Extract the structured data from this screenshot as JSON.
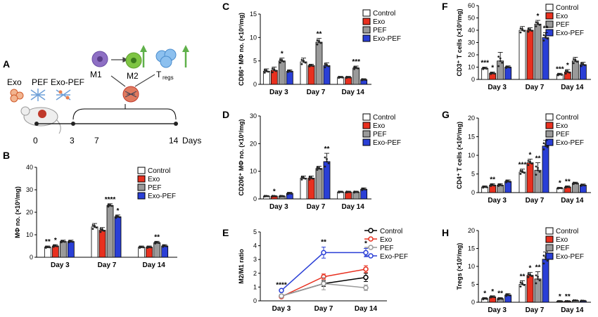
{
  "colors": {
    "control": "#ffffff",
    "exo": "#e8301f",
    "pef": "#9a9a9a",
    "exo_pef": "#2a3fd6",
    "m1": "#8e6fc4",
    "m2": "#7ec443",
    "treg": "#6aa7e0",
    "arrow": "#5fb04a"
  },
  "panel_a": {
    "label": "A",
    "groups": [
      "Exo",
      "PEF",
      "Exo-PEF"
    ],
    "cells": [
      "M1",
      "M2",
      "T",
      "regs"
    ],
    "timeline": [
      "0",
      "3",
      "7",
      "14"
    ],
    "unit": "Days"
  },
  "legend4": [
    "Control",
    "Exo",
    "PEF",
    "Exo-PEF"
  ],
  "chart_data": [
    {
      "id": "B",
      "type": "bar",
      "label": "B",
      "ylabel": "MΦ no. (×10²/mg)",
      "ylim": [
        0,
        40
      ],
      "yticks": [
        "0",
        "10",
        "20",
        "30",
        "40"
      ],
      "categories": [
        "Day 3",
        "Day 7",
        "Day 14"
      ],
      "series": [
        {
          "name": "Control",
          "values": [
            4.5,
            13.5,
            4.5
          ]
        },
        {
          "name": "Exo",
          "values": [
            5,
            12,
            4.5
          ]
        },
        {
          "name": "PEF",
          "values": [
            7,
            23,
            6.5
          ]
        },
        {
          "name": "Exo-PEF",
          "values": [
            7,
            18,
            5
          ]
        }
      ],
      "errors": [
        [
          0.5,
          1.5,
          0.5
        ],
        [
          0.6,
          1.2,
          0.5
        ],
        [
          0.6,
          0.8,
          0.6
        ],
        [
          0.6,
          0.8,
          0.6
        ]
      ],
      "annotations": [
        {
          "text": "**",
          "cat": 0,
          "bar": 0
        },
        {
          "text": "*",
          "cat": 0,
          "bar": 1
        },
        {
          "text": "****",
          "cat": 1,
          "bar": 2
        },
        {
          "text": "*",
          "cat": 1,
          "bar": 3
        },
        {
          "text": "**",
          "cat": 2,
          "bar": 2
        }
      ]
    },
    {
      "id": "C",
      "type": "bar",
      "label": "C",
      "ylabel": "CD86⁺ MΦ no. (×10²/mg)",
      "ylim": [
        0,
        15
      ],
      "yticks": [
        "0",
        "5",
        "10",
        "15"
      ],
      "categories": [
        "Day 3",
        "Day 7",
        "Day 14"
      ],
      "series": [
        {
          "name": "Control",
          "values": [
            2.8,
            4.8,
            1.5
          ]
        },
        {
          "name": "Exo",
          "values": [
            3,
            4,
            1.5
          ]
        },
        {
          "name": "PEF",
          "values": [
            5,
            9,
            3.5
          ]
        },
        {
          "name": "Exo-PEF",
          "values": [
            2.8,
            4,
            1
          ]
        }
      ],
      "errors": [
        [
          0.5,
          0.8,
          0.2
        ],
        [
          0.7,
          0.3,
          0.2
        ],
        [
          0.6,
          0.8,
          0.4
        ],
        [
          0.3,
          0.6,
          0.2
        ]
      ],
      "annotations": [
        {
          "text": "*",
          "cat": 0,
          "bar": 2
        },
        {
          "text": "**",
          "cat": 1,
          "bar": 2
        },
        {
          "text": "***",
          "cat": 2,
          "bar": 2
        }
      ]
    },
    {
      "id": "D",
      "type": "bar",
      "label": "D",
      "ylabel": "CD206⁺ MΦ no. (×10²/mg)",
      "ylim": [
        0,
        30
      ],
      "yticks": [
        "0",
        "10",
        "20",
        "30"
      ],
      "categories": [
        "Day 3",
        "Day 7",
        "Day 14"
      ],
      "series": [
        {
          "name": "Control",
          "values": [
            1,
            7.5,
            2.5
          ]
        },
        {
          "name": "Exo",
          "values": [
            1,
            7.5,
            2.5
          ]
        },
        {
          "name": "PEF",
          "values": [
            1,
            11,
            2.5
          ]
        },
        {
          "name": "Exo-PEF",
          "values": [
            2,
            13.5,
            3.5
          ]
        }
      ],
      "errors": [
        [
          0.2,
          0.8,
          0.3
        ],
        [
          0.2,
          0.8,
          0.3
        ],
        [
          0.2,
          0.8,
          0.3
        ],
        [
          0.4,
          3,
          0.5
        ]
      ],
      "annotations": [
        {
          "text": "*",
          "cat": 0,
          "bar": 1
        },
        {
          "text": "**",
          "cat": 1,
          "bar": 3
        }
      ]
    },
    {
      "id": "E",
      "type": "line",
      "label": "E",
      "ylabel": "M2/M1 ratio",
      "ylim": [
        0,
        5
      ],
      "yticks": [
        "0",
        "1",
        "2",
        "3",
        "4",
        "5"
      ],
      "x": [
        "Day 3",
        "Day 7",
        "Day 14"
      ],
      "series": [
        {
          "name": "Control",
          "values": [
            0.35,
            1.25,
            1.7
          ]
        },
        {
          "name": "Exo",
          "values": [
            0.3,
            1.75,
            2.3
          ]
        },
        {
          "name": "PEF",
          "values": [
            0.35,
            1.25,
            0.95
          ]
        },
        {
          "name": "Exo-PEF",
          "values": [
            0.75,
            3.5,
            3.5
          ]
        }
      ],
      "errors": [
        [
          0.05,
          0.2,
          0.3
        ],
        [
          0.05,
          0.2,
          0.25
        ],
        [
          0.05,
          0.45,
          0.2
        ],
        [
          0.05,
          0.4,
          0.3
        ]
      ],
      "annotations": [
        {
          "text": "****",
          "x": 0
        },
        {
          "text": "**",
          "x": 1
        },
        {
          "text": "*",
          "x": 2
        }
      ]
    },
    {
      "id": "F",
      "type": "bar",
      "label": "F",
      "ylabel": "CD3⁺ T cells (×10²/mg)",
      "ylim": [
        0,
        60
      ],
      "yticks": [
        "0",
        "10",
        "20",
        "30",
        "40",
        "50",
        "60"
      ],
      "categories": [
        "Day 3",
        "Day 7",
        "Day 14"
      ],
      "series": [
        {
          "name": "Control",
          "values": [
            9,
            40,
            4
          ]
        },
        {
          "name": "Exo",
          "values": [
            5,
            40,
            6
          ]
        },
        {
          "name": "PEF",
          "values": [
            15,
            45,
            15
          ]
        },
        {
          "name": "Exo-PEF",
          "values": [
            10,
            34,
            12
          ]
        }
      ],
      "errors": [
        [
          1,
          3,
          1
        ],
        [
          1,
          2,
          2
        ],
        [
          7,
          3,
          3
        ],
        [
          1,
          4,
          2
        ]
      ],
      "annotations": [
        {
          "text": "***",
          "cat": 0,
          "bar": 0
        },
        {
          "text": "*",
          "cat": 0,
          "bar": 1
        },
        {
          "text": "*",
          "cat": 1,
          "bar": 2
        },
        {
          "text": "**",
          "cat": 1,
          "bar": 3
        },
        {
          "text": "***",
          "cat": 2,
          "bar": 0
        },
        {
          "text": "*",
          "cat": 2,
          "bar": 1
        }
      ]
    },
    {
      "id": "G",
      "type": "bar",
      "label": "G",
      "ylabel": "CD4⁺ T cells (×10²/mg)",
      "ylim": [
        0,
        20
      ],
      "yticks": [
        "0",
        "5",
        "10",
        "15",
        "20"
      ],
      "categories": [
        "Day 3",
        "Day 7",
        "Day 14"
      ],
      "series": [
        {
          "name": "Control",
          "values": [
            1.5,
            5.5,
            1.2
          ]
        },
        {
          "name": "Exo",
          "values": [
            2,
            8,
            1.5
          ]
        },
        {
          "name": "PEF",
          "values": [
            2,
            6,
            2.5
          ]
        },
        {
          "name": "Exo-PEF",
          "values": [
            3,
            12.5,
            2
          ]
        }
      ],
      "errors": [
        [
          0.3,
          0.8,
          0.2
        ],
        [
          0.4,
          1,
          0.3
        ],
        [
          0.4,
          2,
          0.3
        ],
        [
          0.4,
          1.5,
          0.3
        ]
      ],
      "annotations": [
        {
          "text": "**",
          "cat": 0,
          "bar": 1
        },
        {
          "text": "***",
          "cat": 1,
          "bar": 0
        },
        {
          "text": "*",
          "cat": 1,
          "bar": 1
        },
        {
          "text": "**",
          "cat": 1,
          "bar": 2
        },
        {
          "text": "*",
          "cat": 2,
          "bar": 0
        },
        {
          "text": "**",
          "cat": 2,
          "bar": 1
        }
      ]
    },
    {
      "id": "H",
      "type": "bar",
      "label": "H",
      "ylabel": "Tregs (×10²/mg)",
      "ylim": [
        0,
        20
      ],
      "yticks": [
        "0",
        "5",
        "10",
        "15",
        "20"
      ],
      "categories": [
        "Day 3",
        "Day 7",
        "Day 14"
      ],
      "series": [
        {
          "name": "Control",
          "values": [
            1,
            5,
            0.3
          ]
        },
        {
          "name": "Exo",
          "values": [
            1.5,
            7.5,
            0.3
          ]
        },
        {
          "name": "PEF",
          "values": [
            1,
            6.5,
            0.5
          ]
        },
        {
          "name": "Exo-PEF",
          "values": [
            2,
            12,
            0.4
          ]
        }
      ],
      "errors": [
        [
          0.3,
          1,
          0.1
        ],
        [
          0.3,
          0.8,
          0.1
        ],
        [
          0.3,
          2,
          0.1
        ],
        [
          0.4,
          2,
          0.1
        ]
      ],
      "annotations": [
        {
          "text": "*",
          "cat": 0,
          "bar": 0
        },
        {
          "text": "*",
          "cat": 0,
          "bar": 1
        },
        {
          "text": "**",
          "cat": 0,
          "bar": 2
        },
        {
          "text": "**",
          "cat": 1,
          "bar": 0
        },
        {
          "text": "*",
          "cat": 1,
          "bar": 1
        },
        {
          "text": "**",
          "cat": 1,
          "bar": 2
        },
        {
          "text": "*",
          "cat": 2,
          "bar": 0
        },
        {
          "text": "**",
          "cat": 2,
          "bar": 1
        }
      ]
    }
  ]
}
